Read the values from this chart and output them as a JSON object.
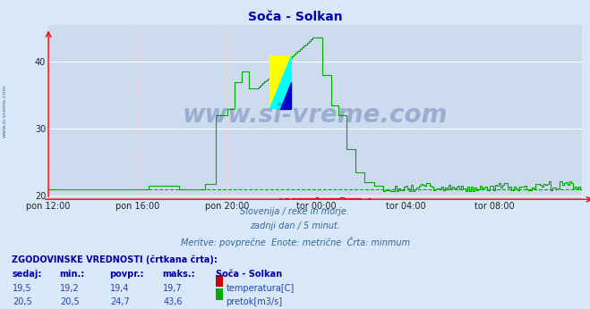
{
  "title": "Soča - Solkan",
  "bg_color": "#d8e8f8",
  "plot_bg_color": "#ccdcee",
  "grid_color_h": "#ffffff",
  "grid_color_v": "#ffcccc",
  "temp_color": "#cc0000",
  "flow_color": "#00aa00",
  "temp_min_val": 19.4,
  "flow_min_val": 21.0,
  "ylim_bottom": 19.5,
  "ylim_top": 45.5,
  "y_ticks": [
    20,
    30,
    40
  ],
  "x_tick_labels": [
    "pon 12:00",
    "pon 16:00",
    "pon 20:00",
    "tor 00:00",
    "tor 04:00",
    "tor 08:00"
  ],
  "x_tick_positions": [
    0,
    48,
    96,
    144,
    192,
    240
  ],
  "subtitle_lines": [
    "Slovenija / reke in morje.",
    "zadnji dan / 5 minut.",
    "Meritve: povprečne  Enote: metrične  Črta: minmum"
  ],
  "table_header": "ZGODOVINSKE VREDNOSTI (črtkana črta):",
  "table_cols": [
    "sedaj:",
    "min.:",
    "povpr.:",
    "maks.:",
    "Soča - Solkan"
  ],
  "table_row1": [
    "19,5",
    "19,2",
    "19,4",
    "19,7",
    "temperatura[C]"
  ],
  "table_row2": [
    "20,5",
    "20,5",
    "24,7",
    "43,6",
    "pretok[m3/s]"
  ],
  "watermark": "www.si-vreme.com",
  "watermark_color": "#1a3a8a",
  "watermark_alpha": 0.28,
  "left_watermark": "www.si-vreme.com",
  "left_wm_color": "#2255aa",
  "N": 288
}
